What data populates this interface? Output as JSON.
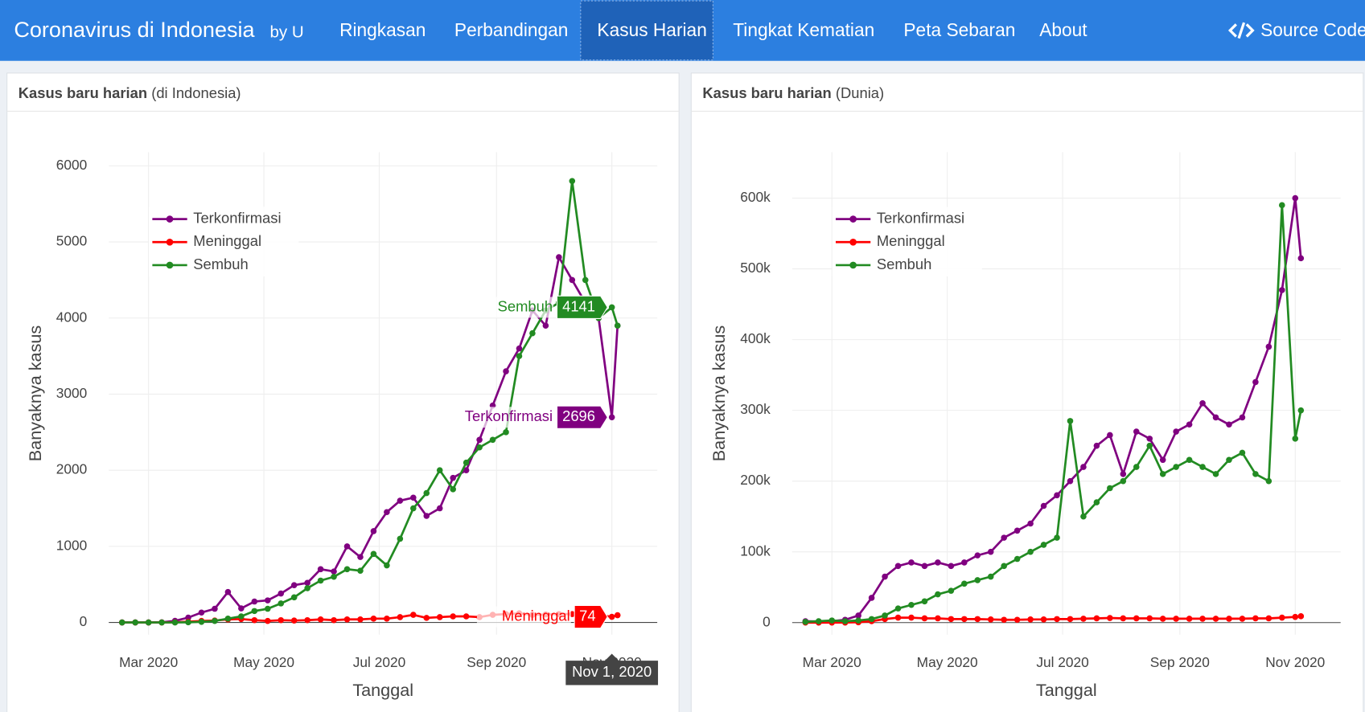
{
  "nav": {
    "title": "Coronavirus di Indonesia",
    "byline": "by U",
    "links": [
      "Ringkasan",
      "Perbandingan",
      "Kasus Harian",
      "Tingkat Kematian",
      "Peta Sebaran",
      "About"
    ],
    "active": 2,
    "source": "Source Code"
  },
  "chart_data": [
    {
      "type": "line",
      "title": "Kasus baru harian",
      "subtitle": "(di Indonesia)",
      "x_label": "Tanggal",
      "y_label": "Banyaknya kasus",
      "grid": true,
      "legend": "top-left",
      "markers": true,
      "x": [
        "2020-02-16",
        "2020-02-23",
        "2020-03-01",
        "2020-03-08",
        "2020-03-15",
        "2020-03-22",
        "2020-03-29",
        "2020-04-05",
        "2020-04-12",
        "2020-04-19",
        "2020-04-26",
        "2020-05-03",
        "2020-05-10",
        "2020-05-17",
        "2020-05-24",
        "2020-05-31",
        "2020-06-07",
        "2020-06-14",
        "2020-06-21",
        "2020-06-28",
        "2020-07-05",
        "2020-07-12",
        "2020-07-19",
        "2020-07-26",
        "2020-08-02",
        "2020-08-09",
        "2020-08-16",
        "2020-08-23",
        "2020-08-30",
        "2020-09-06",
        "2020-09-13",
        "2020-09-20",
        "2020-09-27",
        "2020-10-04",
        "2020-10-11",
        "2020-10-18",
        "2020-10-25",
        "2020-11-01",
        "2020-11-04"
      ],
      "xlim": [
        "2020-02-09",
        "2020-11-25"
      ],
      "xticks": [
        {
          "value": "2020-03-01",
          "label": "Mar 2020"
        },
        {
          "value": "2020-05-01",
          "label": "May 2020"
        },
        {
          "value": "2020-07-01",
          "label": "Jul 2020"
        },
        {
          "value": "2020-09-01",
          "label": "Sep 2020"
        },
        {
          "value": "2020-11-01",
          "label": "Nov 2020"
        }
      ],
      "ylim": [
        -160,
        6180
      ],
      "yticks": [
        0,
        1000,
        2000,
        3000,
        4000,
        5000,
        6000
      ],
      "series": [
        {
          "name": "Terkonfirmasi",
          "color": "#800080",
          "values": [
            0,
            0,
            0,
            2,
            21,
            64,
            130,
            180,
            400,
            185,
            275,
            290,
            380,
            490,
            520,
            700,
            670,
            1000,
            860,
            1200,
            1450,
            1600,
            1640,
            1400,
            1500,
            1900,
            2000,
            2400,
            2850,
            3300,
            3600,
            4100,
            3900,
            4800,
            4500,
            4200,
            4000,
            2696,
            3900
          ]
        },
        {
          "name": "Meninggal",
          "color": "#ff0000",
          "values": [
            0,
            0,
            0,
            0,
            2,
            10,
            20,
            25,
            40,
            45,
            30,
            20,
            30,
            25,
            30,
            40,
            30,
            40,
            40,
            50,
            50,
            70,
            100,
            60,
            70,
            80,
            80,
            70,
            100,
            110,
            120,
            100,
            105,
            110,
            110,
            90,
            100,
            74,
            95
          ]
        },
        {
          "name": "Sembuh",
          "color": "#228b22",
          "values": [
            0,
            0,
            0,
            0,
            0,
            2,
            8,
            20,
            50,
            80,
            150,
            180,
            250,
            330,
            450,
            550,
            600,
            700,
            680,
            900,
            750,
            1100,
            1500,
            1700,
            2000,
            1750,
            2100,
            2300,
            2400,
            2500,
            3500,
            3800,
            4100,
            4200,
            5800,
            4500,
            4000,
            4141,
            3900
          ]
        }
      ],
      "hover": {
        "x": "2020-11-01",
        "label": "Nov 1, 2020"
      }
    },
    {
      "type": "line",
      "title": "Kasus baru harian",
      "subtitle": "(Dunia)",
      "x_label": "Tanggal",
      "y_label": "Banyaknya kasus",
      "grid": true,
      "legend": "top-left",
      "markers": true,
      "x": [
        "2020-02-16",
        "2020-02-23",
        "2020-03-01",
        "2020-03-08",
        "2020-03-15",
        "2020-03-22",
        "2020-03-29",
        "2020-04-05",
        "2020-04-12",
        "2020-04-19",
        "2020-04-26",
        "2020-05-03",
        "2020-05-10",
        "2020-05-17",
        "2020-05-24",
        "2020-05-31",
        "2020-06-07",
        "2020-06-14",
        "2020-06-21",
        "2020-06-28",
        "2020-07-05",
        "2020-07-12",
        "2020-07-19",
        "2020-07-26",
        "2020-08-02",
        "2020-08-09",
        "2020-08-16",
        "2020-08-23",
        "2020-08-30",
        "2020-09-06",
        "2020-09-13",
        "2020-09-20",
        "2020-09-27",
        "2020-10-04",
        "2020-10-11",
        "2020-10-18",
        "2020-10-25",
        "2020-11-01",
        "2020-11-04"
      ],
      "xlim": [
        "2020-02-09",
        "2020-11-25"
      ],
      "xticks": [
        {
          "value": "2020-03-01",
          "label": "Mar 2020"
        },
        {
          "value": "2020-05-01",
          "label": "May 2020"
        },
        {
          "value": "2020-07-01",
          "label": "Jul 2020"
        },
        {
          "value": "2020-09-01",
          "label": "Sep 2020"
        },
        {
          "value": "2020-11-01",
          "label": "Nov 2020"
        }
      ],
      "ylim": [
        -17000,
        665000
      ],
      "yticks": [
        0,
        {
          "value": 100000,
          "label": "100k"
        },
        {
          "value": 200000,
          "label": "200k"
        },
        {
          "value": 300000,
          "label": "300k"
        },
        {
          "value": 400000,
          "label": "400k"
        },
        {
          "value": 500000,
          "label": "500k"
        },
        {
          "value": 600000,
          "label": "600k"
        }
      ],
      "series": [
        {
          "name": "Terkonfirmasi",
          "color": "#800080",
          "values": [
            2000,
            1500,
            2000,
            4000,
            10000,
            35000,
            65000,
            80000,
            85000,
            80000,
            85000,
            80000,
            85000,
            95000,
            100000,
            120000,
            130000,
            140000,
            165000,
            180000,
            200000,
            220000,
            250000,
            265000,
            210000,
            270000,
            260000,
            230000,
            270000,
            280000,
            310000,
            290000,
            280000,
            290000,
            340000,
            390000,
            470000,
            600000,
            515000
          ]
        },
        {
          "name": "Meninggal",
          "color": "#ff0000",
          "values": [
            0,
            0,
            0,
            100,
            500,
            2000,
            5000,
            7000,
            7000,
            6000,
            6000,
            5000,
            5000,
            5000,
            4500,
            4000,
            4000,
            4500,
            4500,
            5000,
            5000,
            5500,
            6000,
            6500,
            6000,
            6000,
            6000,
            5500,
            5500,
            5500,
            5500,
            5500,
            5500,
            5500,
            6000,
            6000,
            7000,
            8000,
            9000
          ]
        },
        {
          "name": "Sembuh",
          "color": "#228b22",
          "values": [
            1000,
            2000,
            3000,
            2000,
            3000,
            5000,
            10000,
            20000,
            25000,
            30000,
            40000,
            45000,
            55000,
            60000,
            65000,
            80000,
            90000,
            100000,
            110000,
            120000,
            285000,
            150000,
            170000,
            190000,
            200000,
            220000,
            250000,
            210000,
            220000,
            230000,
            220000,
            210000,
            230000,
            240000,
            210000,
            200000,
            590000,
            260000,
            300000
          ]
        }
      ]
    }
  ]
}
